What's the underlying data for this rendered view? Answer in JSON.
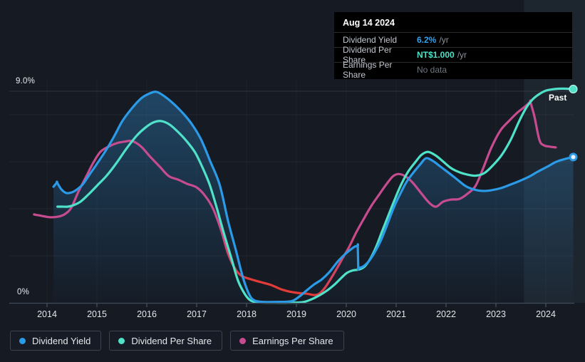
{
  "tooltip": {
    "date": "Aug 14 2024",
    "rows": [
      {
        "label": "Dividend Yield",
        "value": "6.2%",
        "suffix": "/yr",
        "value_color": "#35A0EA"
      },
      {
        "label": "Dividend Per Share",
        "value": "NT$1.000",
        "suffix": "/yr",
        "value_color": "#4FE2C9"
      },
      {
        "label": "Earnings Per Share",
        "value": "No data",
        "suffix": "",
        "value_color": "#6F7680"
      }
    ]
  },
  "annotations": {
    "past_label": "Past"
  },
  "y_axis": {
    "top_label": "9.0%",
    "bottom_label": "0%"
  },
  "legend": [
    {
      "label": "Dividend Yield",
      "color": "#2B9BE8"
    },
    {
      "label": "Dividend Per Share",
      "color": "#4FE2C9"
    },
    {
      "label": "Earnings Per Share",
      "color": "#C74B8F"
    }
  ],
  "chart_data": {
    "type": "line",
    "x_unit": "year",
    "y_unit": "percent (dividend-yield axis reading, 0-9%)",
    "xlim": [
      2013.6,
      2024.65
    ],
    "ylim": [
      0,
      9
    ],
    "ylabels": [
      "9.0%",
      "0%"
    ],
    "gridlines_pct": [
      2,
      4,
      6,
      8,
      9
    ],
    "x_years": [
      "2014",
      "2015",
      "2016",
      "2017",
      "2018",
      "2019",
      "2020",
      "2021",
      "2022",
      "2023",
      "2024"
    ],
    "past_region_start_year": 2023.56,
    "grid": true,
    "legend_position": "bottom-left",
    "series": [
      {
        "name": "Dividend Yield",
        "color": "#2B9BE8",
        "end_dot": "hollow",
        "points": [
          [
            2014.13,
            4.94
          ],
          [
            2014.2,
            5.12
          ],
          [
            2014.2,
            5.12
          ],
          [
            2014.29,
            4.82
          ],
          [
            2014.39,
            4.67
          ],
          [
            2014.5,
            4.7
          ],
          [
            2014.6,
            4.82
          ],
          [
            2014.72,
            5.05
          ],
          [
            2014.85,
            5.45
          ],
          [
            2015.0,
            5.91
          ],
          [
            2015.17,
            6.45
          ],
          [
            2015.34,
            7.06
          ],
          [
            2015.51,
            7.73
          ],
          [
            2015.7,
            8.27
          ],
          [
            2015.89,
            8.7
          ],
          [
            2016.06,
            8.91
          ],
          [
            2016.2,
            8.97
          ],
          [
            2016.37,
            8.76
          ],
          [
            2016.56,
            8.42
          ],
          [
            2016.74,
            8.03
          ],
          [
            2016.91,
            7.58
          ],
          [
            2017.09,
            6.94
          ],
          [
            2017.27,
            6.03
          ],
          [
            2017.46,
            5.03
          ],
          [
            2017.63,
            3.48
          ],
          [
            2017.79,
            2.21
          ],
          [
            2017.93,
            1.06
          ],
          [
            2018.06,
            0.33
          ],
          [
            2018.17,
            0.09
          ],
          [
            2018.35,
            0.04
          ],
          [
            2018.6,
            0.04
          ],
          [
            2018.9,
            0.07
          ],
          [
            2019.06,
            0.27
          ],
          [
            2019.2,
            0.52
          ],
          [
            2019.36,
            0.79
          ],
          [
            2019.51,
            1.0
          ],
          [
            2019.67,
            1.33
          ],
          [
            2019.83,
            1.76
          ],
          [
            2019.97,
            2.06
          ],
          [
            2020.09,
            2.27
          ],
          [
            2020.17,
            2.39
          ],
          [
            2020.23,
            2.42
          ],
          [
            2020.23,
            2.42
          ],
          [
            2020.24,
            1.48
          ],
          [
            2020.24,
            1.48
          ],
          [
            2020.34,
            1.55
          ],
          [
            2020.46,
            1.79
          ],
          [
            2020.57,
            2.15
          ],
          [
            2020.69,
            2.64
          ],
          [
            2020.81,
            3.27
          ],
          [
            2020.96,
            4.09
          ],
          [
            2021.09,
            4.67
          ],
          [
            2021.21,
            5.15
          ],
          [
            2021.36,
            5.58
          ],
          [
            2021.49,
            5.91
          ],
          [
            2021.6,
            6.15
          ],
          [
            2021.74,
            6.03
          ],
          [
            2021.89,
            5.79
          ],
          [
            2022.04,
            5.55
          ],
          [
            2022.21,
            5.27
          ],
          [
            2022.39,
            4.97
          ],
          [
            2022.56,
            4.82
          ],
          [
            2022.73,
            4.76
          ],
          [
            2022.91,
            4.79
          ],
          [
            2023.1,
            4.88
          ],
          [
            2023.29,
            5.03
          ],
          [
            2023.47,
            5.18
          ],
          [
            2023.66,
            5.36
          ],
          [
            2023.84,
            5.58
          ],
          [
            2024.03,
            5.79
          ],
          [
            2024.21,
            6.0
          ],
          [
            2024.39,
            6.12
          ],
          [
            2024.55,
            6.2
          ]
        ]
      },
      {
        "name": "Dividend Per Share",
        "color": "#4FE2C9",
        "end_dot": "solid",
        "points": [
          [
            2014.21,
            4.09
          ],
          [
            2014.3,
            4.09
          ],
          [
            2014.42,
            4.09
          ],
          [
            2014.53,
            4.15
          ],
          [
            2014.67,
            4.3
          ],
          [
            2014.83,
            4.61
          ],
          [
            2015.01,
            5.0
          ],
          [
            2015.2,
            5.42
          ],
          [
            2015.39,
            5.94
          ],
          [
            2015.59,
            6.55
          ],
          [
            2015.79,
            7.09
          ],
          [
            2015.97,
            7.45
          ],
          [
            2016.13,
            7.67
          ],
          [
            2016.29,
            7.73
          ],
          [
            2016.46,
            7.58
          ],
          [
            2016.64,
            7.24
          ],
          [
            2016.81,
            6.85
          ],
          [
            2016.97,
            6.39
          ],
          [
            2017.11,
            5.79
          ],
          [
            2017.26,
            5.03
          ],
          [
            2017.4,
            4.06
          ],
          [
            2017.54,
            3.0
          ],
          [
            2017.69,
            1.94
          ],
          [
            2017.83,
            0.94
          ],
          [
            2017.97,
            0.36
          ],
          [
            2018.09,
            0.09
          ],
          [
            2018.25,
            0.02
          ],
          [
            2018.55,
            0.01
          ],
          [
            2018.9,
            0.01
          ],
          [
            2019.13,
            0.03
          ],
          [
            2019.3,
            0.15
          ],
          [
            2019.47,
            0.33
          ],
          [
            2019.63,
            0.55
          ],
          [
            2019.77,
            0.79
          ],
          [
            2019.9,
            1.06
          ],
          [
            2020.01,
            1.27
          ],
          [
            2020.13,
            1.38
          ],
          [
            2020.26,
            1.42
          ],
          [
            2020.37,
            1.55
          ],
          [
            2020.49,
            1.91
          ],
          [
            2020.6,
            2.39
          ],
          [
            2020.71,
            3.0
          ],
          [
            2020.84,
            3.7
          ],
          [
            2020.97,
            4.39
          ],
          [
            2021.1,
            5.03
          ],
          [
            2021.24,
            5.58
          ],
          [
            2021.39,
            6.0
          ],
          [
            2021.51,
            6.3
          ],
          [
            2021.64,
            6.42
          ],
          [
            2021.79,
            6.27
          ],
          [
            2021.93,
            6.03
          ],
          [
            2022.1,
            5.73
          ],
          [
            2022.27,
            5.55
          ],
          [
            2022.44,
            5.45
          ],
          [
            2022.6,
            5.41
          ],
          [
            2022.77,
            5.52
          ],
          [
            2022.94,
            5.85
          ],
          [
            2023.11,
            6.27
          ],
          [
            2023.29,
            6.91
          ],
          [
            2023.46,
            7.7
          ],
          [
            2023.6,
            8.27
          ],
          [
            2023.73,
            8.64
          ],
          [
            2023.87,
            8.88
          ],
          [
            2024.01,
            9.03
          ],
          [
            2024.17,
            9.09
          ],
          [
            2024.34,
            9.11
          ],
          [
            2024.55,
            9.09
          ]
        ]
      },
      {
        "name": "Earnings Per Share",
        "color": "#C74B8F",
        "red_color": "#E23B38",
        "red_x_range": [
          2017.9,
          2019.45
        ],
        "end_dot": "none",
        "points": [
          [
            2013.74,
            3.76
          ],
          [
            2013.89,
            3.7
          ],
          [
            2014.06,
            3.64
          ],
          [
            2014.23,
            3.67
          ],
          [
            2014.37,
            3.79
          ],
          [
            2014.49,
            4.06
          ],
          [
            2014.63,
            4.73
          ],
          [
            2014.79,
            5.39
          ],
          [
            2014.93,
            5.97
          ],
          [
            2015.07,
            6.42
          ],
          [
            2015.23,
            6.64
          ],
          [
            2015.4,
            6.79
          ],
          [
            2015.57,
            6.86
          ],
          [
            2015.71,
            6.88
          ],
          [
            2015.89,
            6.64
          ],
          [
            2016.07,
            6.21
          ],
          [
            2016.26,
            5.79
          ],
          [
            2016.44,
            5.39
          ],
          [
            2016.63,
            5.24
          ],
          [
            2016.81,
            5.06
          ],
          [
            2017.0,
            4.91
          ],
          [
            2017.17,
            4.55
          ],
          [
            2017.33,
            4.0
          ],
          [
            2017.49,
            3.09
          ],
          [
            2017.63,
            2.09
          ],
          [
            2017.77,
            1.45
          ],
          [
            2017.9,
            1.15
          ],
          [
            2018.09,
            1.0
          ],
          [
            2018.29,
            0.88
          ],
          [
            2018.49,
            0.76
          ],
          [
            2018.69,
            0.58
          ],
          [
            2018.86,
            0.48
          ],
          [
            2019.03,
            0.42
          ],
          [
            2019.2,
            0.39
          ],
          [
            2019.36,
            0.33
          ],
          [
            2019.46,
            0.39
          ],
          [
            2019.57,
            0.64
          ],
          [
            2019.69,
            1.03
          ],
          [
            2019.8,
            1.42
          ],
          [
            2019.93,
            1.91
          ],
          [
            2020.06,
            2.39
          ],
          [
            2020.2,
            3.0
          ],
          [
            2020.36,
            3.61
          ],
          [
            2020.51,
            4.15
          ],
          [
            2020.67,
            4.64
          ],
          [
            2020.81,
            5.06
          ],
          [
            2020.94,
            5.39
          ],
          [
            2021.06,
            5.48
          ],
          [
            2021.2,
            5.36
          ],
          [
            2021.34,
            5.09
          ],
          [
            2021.51,
            4.64
          ],
          [
            2021.67,
            4.24
          ],
          [
            2021.8,
            4.09
          ],
          [
            2021.94,
            4.3
          ],
          [
            2022.1,
            4.39
          ],
          [
            2022.27,
            4.42
          ],
          [
            2022.43,
            4.64
          ],
          [
            2022.59,
            4.97
          ],
          [
            2022.74,
            5.7
          ],
          [
            2022.91,
            6.61
          ],
          [
            2023.09,
            7.33
          ],
          [
            2023.26,
            7.73
          ],
          [
            2023.43,
            8.09
          ],
          [
            2023.59,
            8.36
          ],
          [
            2023.69,
            8.55
          ],
          [
            2023.69,
            8.55
          ],
          [
            2023.77,
            7.94
          ],
          [
            2023.87,
            6.94
          ],
          [
            2023.96,
            6.7
          ],
          [
            2024.09,
            6.64
          ],
          [
            2024.2,
            6.61
          ]
        ]
      }
    ]
  }
}
